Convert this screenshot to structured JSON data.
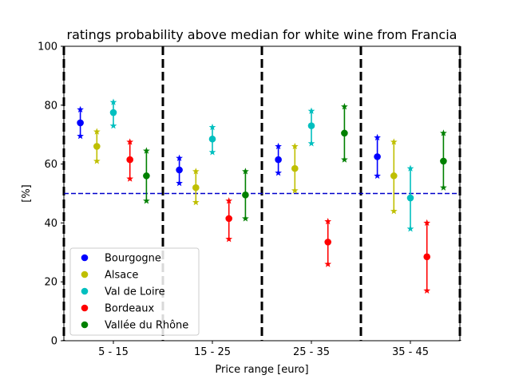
{
  "chart_data": {
    "type": "errorbar",
    "title": "ratings probability above median for white wine from Francia",
    "xlabel": "Price range [euro]",
    "ylabel": "[%]",
    "ylim": [
      0,
      100
    ],
    "yticks": [
      0,
      20,
      40,
      60,
      80,
      100
    ],
    "categories": [
      "5 - 15",
      "15 - 25",
      "25 - 35",
      "35 - 45"
    ],
    "reference_line": {
      "y": 50,
      "style": "dashed",
      "color": "#0000cc"
    },
    "group_separators": "dashed black vertical lines between price ranges",
    "legend_position": "lower-left",
    "series": [
      {
        "name": "Bourgogne",
        "color": "#0000ff",
        "values": [
          74,
          58,
          61.5,
          62.5
        ],
        "lower": [
          69.5,
          53.5,
          57,
          56
        ],
        "upper": [
          78.5,
          62,
          66,
          69
        ]
      },
      {
        "name": "Alsace",
        "color": "#bfbf00",
        "values": [
          66,
          52,
          58.5,
          56
        ],
        "lower": [
          61,
          47,
          51,
          44
        ],
        "upper": [
          71,
          57.5,
          66,
          67.5
        ]
      },
      {
        "name": "Val de Loire",
        "color": "#00bfbf",
        "values": [
          77.5,
          68.5,
          73,
          48.5
        ],
        "lower": [
          73,
          64,
          67,
          38
        ],
        "upper": [
          81,
          72.5,
          78,
          58.5
        ]
      },
      {
        "name": "Bordeaux",
        "color": "#ff0000",
        "values": [
          61.5,
          41.5,
          33.5,
          28.5
        ],
        "lower": [
          55,
          34.5,
          26,
          17
        ],
        "upper": [
          67.5,
          47.5,
          40.5,
          40
        ]
      },
      {
        "name": "Vallée du Rhône",
        "color": "#008000",
        "values": [
          56,
          49.5,
          70.5,
          61
        ],
        "lower": [
          47.5,
          41.5,
          61.5,
          52
        ],
        "upper": [
          64.5,
          57.5,
          79.5,
          70.5
        ]
      }
    ]
  }
}
